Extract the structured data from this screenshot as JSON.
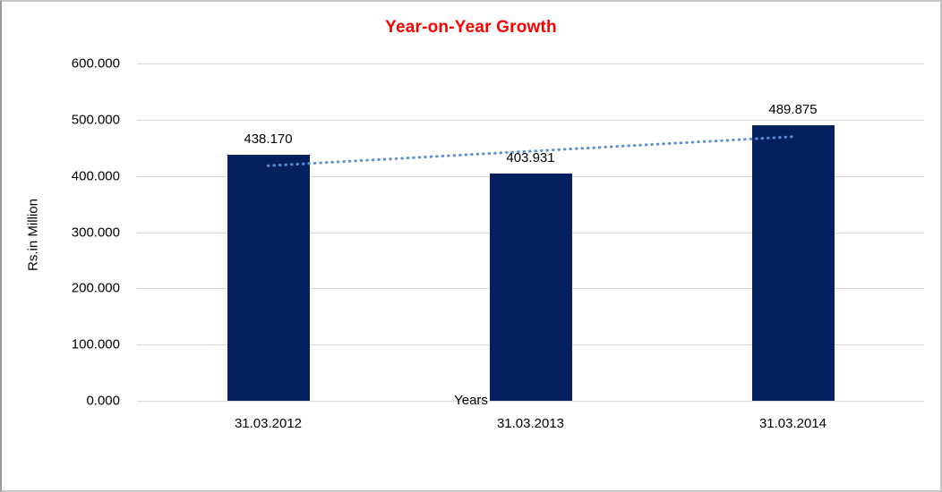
{
  "window": {
    "background": "#ffffff",
    "border_color": "#c6c6c6"
  },
  "chart_data": {
    "type": "bar",
    "title": "Year-on-Year Growth",
    "title_color": "#ff0000",
    "xlabel": "Years",
    "ylabel": "Rs.in Million",
    "categories": [
      "31.03.2012",
      "31.03.2013",
      "31.03.2014"
    ],
    "values": [
      438.17,
      403.931,
      489.875
    ],
    "data_labels": [
      "438.170",
      "403.931",
      "489.875"
    ],
    "bar_color": "#04205f",
    "ylim": [
      0,
      600
    ],
    "y_ticks": [
      {
        "value": 0,
        "label": "0.000"
      },
      {
        "value": 100,
        "label": "100.000"
      },
      {
        "value": 200,
        "label": "200.000"
      },
      {
        "value": 300,
        "label": "300.000"
      },
      {
        "value": 400,
        "label": "400.000"
      },
      {
        "value": 500,
        "label": "500.000"
      },
      {
        "value": 600,
        "label": "600.000"
      }
    ],
    "grid": true,
    "gridline_color": "#d9d9d9",
    "legend": "none",
    "trendline": {
      "type": "linear",
      "style": "dotted",
      "color": "#5b8fd5"
    }
  }
}
